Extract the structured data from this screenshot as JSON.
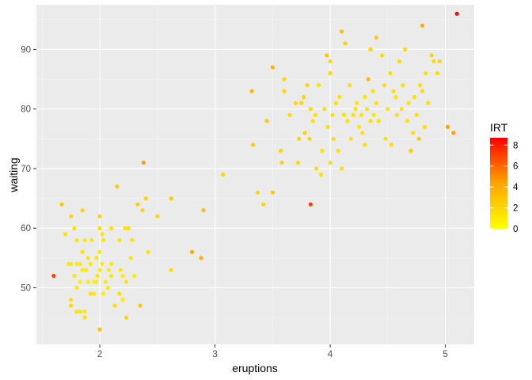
{
  "chart_data": {
    "type": "scatter",
    "title": "",
    "xlabel": "eruptions",
    "ylabel": "waiting",
    "xlim": [
      1.45,
      5.25
    ],
    "ylim": [
      40.5,
      97.5
    ],
    "x_ticks": [
      2,
      3,
      4,
      5
    ],
    "y_ticks": [
      50,
      60,
      70,
      80,
      90
    ],
    "grid": true,
    "legend": {
      "title": "IRT",
      "placement": "right",
      "range": [
        0,
        8.7
      ],
      "ticks": [
        0,
        2,
        4,
        6,
        8
      ],
      "colors": [
        "#FFFF00",
        "#FFA500",
        "#FF0000"
      ]
    },
    "points": [
      [
        1.6,
        52,
        7.0
      ],
      [
        1.67,
        64,
        2.5
      ],
      [
        1.7,
        59,
        1.5
      ],
      [
        1.73,
        54,
        1.0
      ],
      [
        1.75,
        54,
        1.2
      ],
      [
        1.75,
        62,
        2.0
      ],
      [
        1.75,
        48,
        1.5
      ],
      [
        1.75,
        47,
        1.8
      ],
      [
        1.78,
        52,
        1.0
      ],
      [
        1.78,
        60,
        1.5
      ],
      [
        1.8,
        54,
        1.0
      ],
      [
        1.8,
        46,
        1.4
      ],
      [
        1.8,
        50,
        1.0
      ],
      [
        1.8,
        58,
        1.3
      ],
      [
        1.83,
        51,
        0.8
      ],
      [
        1.83,
        54,
        1.0
      ],
      [
        1.83,
        46,
        1.2
      ],
      [
        1.85,
        63,
        2.0
      ],
      [
        1.85,
        56,
        1.5
      ],
      [
        1.85,
        53,
        1.0
      ],
      [
        1.87,
        58,
        1.1
      ],
      [
        1.87,
        46,
        1.0
      ],
      [
        1.87,
        45,
        1.3
      ],
      [
        1.88,
        53,
        1.0
      ],
      [
        1.9,
        51,
        0.9
      ],
      [
        1.9,
        55,
        1.1
      ],
      [
        1.92,
        49,
        1.5
      ],
      [
        1.92,
        54,
        1.0
      ],
      [
        1.93,
        58,
        1.2
      ],
      [
        1.95,
        51,
        0.8
      ],
      [
        1.95,
        49,
        1.0
      ],
      [
        1.97,
        51,
        1.0
      ],
      [
        1.97,
        55,
        1.2
      ],
      [
        1.98,
        52,
        1.0
      ],
      [
        2.0,
        53,
        1.0
      ],
      [
        2.0,
        56,
        1.2
      ],
      [
        2.0,
        62,
        2.0
      ],
      [
        2.0,
        43,
        3.0
      ],
      [
        2.0,
        60,
        1.6
      ],
      [
        2.02,
        59,
        1.2
      ],
      [
        2.02,
        54,
        1.0
      ],
      [
        2.03,
        58,
        1.3
      ],
      [
        2.03,
        49,
        1.0
      ],
      [
        2.05,
        51,
        0.9
      ],
      [
        2.07,
        50,
        1.0
      ],
      [
        2.08,
        53,
        1.0
      ],
      [
        2.1,
        52,
        1.2
      ],
      [
        2.1,
        60,
        1.5
      ],
      [
        2.1,
        54,
        1.0
      ],
      [
        2.13,
        47,
        1.6
      ],
      [
        2.15,
        67,
        2.5
      ],
      [
        2.17,
        58,
        1.3
      ],
      [
        2.17,
        49,
        1.5
      ],
      [
        2.18,
        53,
        1.0
      ],
      [
        2.2,
        48,
        1.0
      ],
      [
        2.2,
        52,
        1.0
      ],
      [
        2.22,
        60,
        1.4
      ],
      [
        2.23,
        45,
        2.0
      ],
      [
        2.23,
        51,
        1.2
      ],
      [
        2.25,
        60,
        1.5
      ],
      [
        2.27,
        55,
        1.2
      ],
      [
        2.28,
        58,
        1.5
      ],
      [
        2.3,
        52,
        1.0
      ],
      [
        2.33,
        64,
        2.3
      ],
      [
        2.35,
        47,
        2.5
      ],
      [
        2.37,
        63,
        2.0
      ],
      [
        2.38,
        71,
        4.5
      ],
      [
        2.4,
        65,
        2.0
      ],
      [
        2.42,
        56,
        1.3
      ],
      [
        2.5,
        62,
        2.0
      ],
      [
        2.62,
        65,
        2.5
      ],
      [
        2.62,
        53,
        1.5
      ],
      [
        2.8,
        56,
        4.0
      ],
      [
        2.88,
        55,
        4.0
      ],
      [
        2.9,
        63,
        3.0
      ],
      [
        3.07,
        69,
        2.0
      ],
      [
        3.32,
        83,
        3.5
      ],
      [
        3.33,
        74,
        2.5
      ],
      [
        3.37,
        66,
        2.0
      ],
      [
        3.42,
        64,
        2.0
      ],
      [
        3.45,
        78,
        2.5
      ],
      [
        3.5,
        87,
        3.5
      ],
      [
        3.5,
        66,
        2.5
      ],
      [
        3.57,
        73,
        2.0
      ],
      [
        3.58,
        71,
        2.2
      ],
      [
        3.6,
        83,
        2.0
      ],
      [
        3.6,
        85,
        2.0
      ],
      [
        3.65,
        79,
        2.0
      ],
      [
        3.7,
        81,
        2.0
      ],
      [
        3.72,
        71,
        2.0
      ],
      [
        3.73,
        75,
        2.0
      ],
      [
        3.75,
        81,
        2.0
      ],
      [
        3.77,
        82,
        2.0
      ],
      [
        3.78,
        76,
        2.0
      ],
      [
        3.8,
        84,
        2.0
      ],
      [
        3.82,
        75,
        2.0
      ],
      [
        3.83,
        64,
        7.0
      ],
      [
        3.83,
        80,
        1.8
      ],
      [
        3.85,
        78,
        1.5
      ],
      [
        3.87,
        79,
        1.5
      ],
      [
        3.88,
        70,
        1.5
      ],
      [
        3.9,
        84,
        1.5
      ],
      [
        3.92,
        69,
        1.5
      ],
      [
        3.93,
        73,
        1.5
      ],
      [
        3.95,
        80,
        1.5
      ],
      [
        3.97,
        89,
        2.5
      ],
      [
        3.98,
        77,
        1.5
      ],
      [
        4.0,
        86,
        1.8
      ],
      [
        4.0,
        71,
        1.6
      ],
      [
        4.0,
        88,
        1.8
      ],
      [
        4.02,
        79,
        1.5
      ],
      [
        4.03,
        75,
        1.5
      ],
      [
        4.05,
        81,
        1.5
      ],
      [
        4.07,
        73,
        1.5
      ],
      [
        4.08,
        82,
        1.5
      ],
      [
        4.1,
        93,
        3.0
      ],
      [
        4.1,
        70,
        1.6
      ],
      [
        4.12,
        79,
        1.4
      ],
      [
        4.13,
        91,
        2.2
      ],
      [
        4.15,
        78,
        1.4
      ],
      [
        4.17,
        84,
        1.5
      ],
      [
        4.18,
        75,
        1.5
      ],
      [
        4.2,
        79,
        1.4
      ],
      [
        4.22,
        80,
        1.3
      ],
      [
        4.23,
        81,
        1.4
      ],
      [
        4.25,
        77,
        1.3
      ],
      [
        4.27,
        79,
        1.4
      ],
      [
        4.28,
        76,
        1.4
      ],
      [
        4.3,
        74,
        1.6
      ],
      [
        4.3,
        82,
        1.4
      ],
      [
        4.32,
        80,
        1.4
      ],
      [
        4.33,
        85,
        3.5
      ],
      [
        4.35,
        90,
        2.0
      ],
      [
        4.35,
        78,
        1.4
      ],
      [
        4.37,
        83,
        1.5
      ],
      [
        4.38,
        79,
        1.3
      ],
      [
        4.4,
        92,
        2.5
      ],
      [
        4.4,
        81,
        1.3
      ],
      [
        4.42,
        78,
        1.4
      ],
      [
        4.45,
        89,
        1.8
      ],
      [
        4.47,
        84,
        1.5
      ],
      [
        4.48,
        75,
        1.5
      ],
      [
        4.5,
        80,
        1.4
      ],
      [
        4.52,
        86,
        1.6
      ],
      [
        4.53,
        74,
        1.5
      ],
      [
        4.55,
        83,
        1.5
      ],
      [
        4.57,
        82,
        1.4
      ],
      [
        4.58,
        79,
        1.4
      ],
      [
        4.6,
        88,
        1.7
      ],
      [
        4.62,
        80,
        1.4
      ],
      [
        4.63,
        84,
        1.5
      ],
      [
        4.65,
        90,
        1.8
      ],
      [
        4.67,
        78,
        1.4
      ],
      [
        4.68,
        81,
        1.5
      ],
      [
        4.7,
        73,
        2.5
      ],
      [
        4.72,
        76,
        1.5
      ],
      [
        4.73,
        82,
        1.5
      ],
      [
        4.75,
        79,
        1.5
      ],
      [
        4.77,
        75,
        2.5
      ],
      [
        4.78,
        84,
        1.5
      ],
      [
        4.8,
        94,
        4.0
      ],
      [
        4.8,
        83,
        1.6
      ],
      [
        4.82,
        77,
        1.6
      ],
      [
        4.83,
        86,
        1.6
      ],
      [
        4.85,
        81,
        1.6
      ],
      [
        4.88,
        89,
        2.0
      ],
      [
        4.9,
        88,
        1.8
      ],
      [
        4.93,
        86,
        1.6
      ],
      [
        4.95,
        88,
        2.0
      ],
      [
        5.02,
        77,
        4.5
      ],
      [
        5.07,
        76,
        4.5
      ],
      [
        5.1,
        96,
        8.5
      ]
    ]
  }
}
